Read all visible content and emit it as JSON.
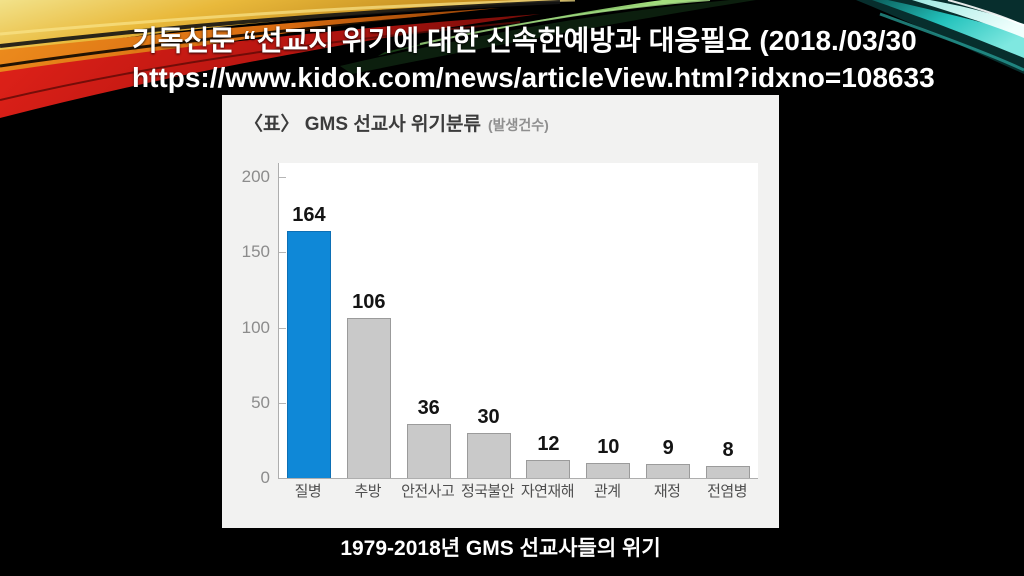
{
  "header": {
    "title_line1": "기독신문  “선교지 위기에 대한 신속한예방과 대응필요 (2018./03/30",
    "title_line2": "https://www.kidok.com/news/articleView.html?idxno=108633"
  },
  "chart_card": {
    "title": "〈표〉 GMS 선교사 위기분류",
    "subtitle": "(발생건수)"
  },
  "chart_data": {
    "type": "bar",
    "title": "〈표〉 GMS 선교사 위기분류 (발생건수)",
    "categories": [
      "질병",
      "추방",
      "안전사고",
      "정국불안",
      "자연재해",
      "관계",
      "재정",
      "전염병"
    ],
    "values": [
      164,
      106,
      36,
      30,
      12,
      10,
      9,
      8
    ],
    "xlabel": "",
    "ylabel": "",
    "ylim": [
      0,
      200
    ],
    "yticks": [
      0,
      50,
      100,
      150,
      200
    ],
    "grid": false,
    "legend": null,
    "highlight_index": 0,
    "highlight_color": "#0f88d7",
    "highlight_border": "#0c6fb5",
    "default_color": "#c9c9c9",
    "default_border": "#9b9b9b"
  },
  "caption": "1979-2018년 GMS 선교사들의 위기",
  "colors": {
    "slide_background": "#000000",
    "card_background": "#f2f2f1",
    "bar_highlight": "#0f88d7",
    "bar_default": "#c9c9c9"
  }
}
